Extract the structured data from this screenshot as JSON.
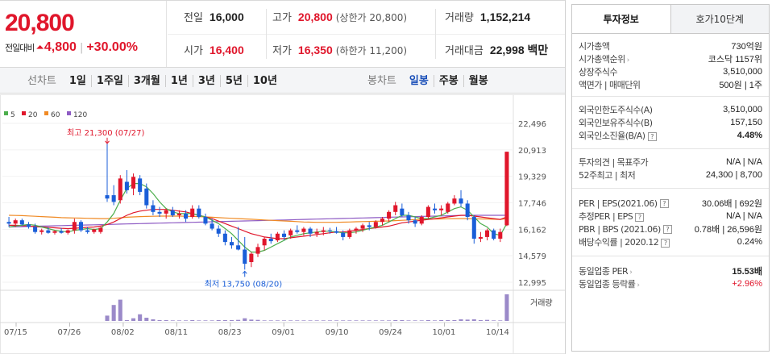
{
  "quote": {
    "price": "20,800",
    "change_label": "전일대비",
    "change_value": "4,800",
    "change_rate": "+30.00%",
    "prev_label": "전일",
    "prev_value": "16,000",
    "high_label": "고가",
    "high_value": "20,800",
    "upper_limit": "(상한가 20,800)",
    "volume_label": "거래량",
    "volume_value": "1,152,214",
    "open_label": "시가",
    "open_value": "16,400",
    "low_label": "저가",
    "low_value": "16,350",
    "lower_limit": "(하한가 11,200)",
    "amount_label": "거래대금",
    "amount_value": "22,998 백만"
  },
  "toolbar": {
    "line_title": "선차트",
    "ranges": [
      "1일",
      "1주일",
      "3개월",
      "1년",
      "3년",
      "5년",
      "10년"
    ],
    "candle_title": "봉차트",
    "candles": [
      "일봉",
      "주봉",
      "월봉"
    ],
    "active_candle": "일봉"
  },
  "chart_data": {
    "type": "candlestick",
    "legend": [
      {
        "label": "5",
        "color": "#4cae4c"
      },
      {
        "label": "20",
        "color": "#e0162b"
      },
      {
        "label": "60",
        "color": "#f08a24"
      },
      {
        "label": "120",
        "color": "#8e5bc4"
      }
    ],
    "y_ticks": [
      "22,496",
      "20,913",
      "19,329",
      "17,746",
      "16,162",
      "14,579",
      "12,995"
    ],
    "y_range": [
      12995,
      22496
    ],
    "x_ticks": [
      "07/15",
      "07/26",
      "08/02",
      "08/11",
      "08/23",
      "09/01",
      "09/10",
      "09/24",
      "10/01",
      "10/14"
    ],
    "high_annotation": "최고 21,300 (07/27)",
    "low_annotation": "최저 13,750 (08/20)",
    "volume_label": "거래량",
    "up_color": "#e0162b",
    "down_color": "#1a5ed8",
    "candles": [
      {
        "o": 16600,
        "h": 16900,
        "l": 16300,
        "c": 16500
      },
      {
        "o": 16500,
        "h": 16800,
        "l": 16300,
        "c": 16700
      },
      {
        "o": 16700,
        "h": 16800,
        "l": 16400,
        "c": 16450
      },
      {
        "o": 16450,
        "h": 16600,
        "l": 16200,
        "c": 16300
      },
      {
        "o": 16300,
        "h": 16500,
        "l": 15900,
        "c": 16000
      },
      {
        "o": 16000,
        "h": 16200,
        "l": 15850,
        "c": 16100
      },
      {
        "o": 16100,
        "h": 16300,
        "l": 15900,
        "c": 15950
      },
      {
        "o": 15950,
        "h": 16100,
        "l": 15850,
        "c": 16050
      },
      {
        "o": 16050,
        "h": 16250,
        "l": 15900,
        "c": 15950
      },
      {
        "o": 15950,
        "h": 16150,
        "l": 15850,
        "c": 16100
      },
      {
        "o": 16100,
        "h": 16800,
        "l": 15900,
        "c": 16600
      },
      {
        "o": 16600,
        "h": 16700,
        "l": 16000,
        "c": 16100
      },
      {
        "o": 16100,
        "h": 16300,
        "l": 15900,
        "c": 16000
      },
      {
        "o": 16000,
        "h": 16200,
        "l": 15900,
        "c": 16150
      },
      {
        "o": 16000,
        "h": 16300,
        "l": 15900,
        "c": 16250
      },
      {
        "o": 18200,
        "h": 21300,
        "l": 17800,
        "c": 18000
      },
      {
        "o": 18200,
        "h": 18800,
        "l": 17600,
        "c": 17800
      },
      {
        "o": 17900,
        "h": 19400,
        "l": 17700,
        "c": 19200
      },
      {
        "o": 19000,
        "h": 19700,
        "l": 18300,
        "c": 18500
      },
      {
        "o": 18600,
        "h": 19500,
        "l": 18200,
        "c": 19300
      },
      {
        "o": 19200,
        "h": 19400,
        "l": 18200,
        "c": 18400
      },
      {
        "o": 18600,
        "h": 18900,
        "l": 17400,
        "c": 17600
      },
      {
        "o": 17600,
        "h": 17900,
        "l": 17000,
        "c": 17200
      },
      {
        "o": 17200,
        "h": 17500,
        "l": 16900,
        "c": 17100
      },
      {
        "o": 17100,
        "h": 17400,
        "l": 16800,
        "c": 17300
      },
      {
        "o": 17300,
        "h": 17500,
        "l": 16900,
        "c": 17000
      },
      {
        "o": 17000,
        "h": 17300,
        "l": 16800,
        "c": 17100
      },
      {
        "o": 17100,
        "h": 17300,
        "l": 16600,
        "c": 16800
      },
      {
        "o": 16900,
        "h": 17600,
        "l": 16800,
        "c": 17400
      },
      {
        "o": 17400,
        "h": 17600,
        "l": 16800,
        "c": 16900
      },
      {
        "o": 16900,
        "h": 17100,
        "l": 16400,
        "c": 16500
      },
      {
        "o": 16500,
        "h": 16800,
        "l": 16100,
        "c": 16200
      },
      {
        "o": 16200,
        "h": 16400,
        "l": 15700,
        "c": 15900
      },
      {
        "o": 15900,
        "h": 16100,
        "l": 15200,
        "c": 15400
      },
      {
        "o": 15400,
        "h": 15700,
        "l": 15000,
        "c": 15200
      },
      {
        "o": 15200,
        "h": 16300,
        "l": 14900,
        "c": 14950
      },
      {
        "o": 14950,
        "h": 15700,
        "l": 13750,
        "c": 14100
      },
      {
        "o": 14200,
        "h": 14800,
        "l": 13900,
        "c": 14700
      },
      {
        "o": 14700,
        "h": 15300,
        "l": 14500,
        "c": 15100
      },
      {
        "o": 15200,
        "h": 15700,
        "l": 14900,
        "c": 15600
      },
      {
        "o": 15600,
        "h": 15900,
        "l": 15300,
        "c": 15450
      },
      {
        "o": 15500,
        "h": 16000,
        "l": 15400,
        "c": 15900
      },
      {
        "o": 15900,
        "h": 16100,
        "l": 15500,
        "c": 15700
      },
      {
        "o": 15800,
        "h": 16200,
        "l": 15600,
        "c": 16100
      },
      {
        "o": 16100,
        "h": 16400,
        "l": 15900,
        "c": 16000
      },
      {
        "o": 16000,
        "h": 16300,
        "l": 15800,
        "c": 16200
      },
      {
        "o": 16200,
        "h": 16300,
        "l": 15700,
        "c": 15900
      },
      {
        "o": 15900,
        "h": 16200,
        "l": 15700,
        "c": 16000
      },
      {
        "o": 16000,
        "h": 16300,
        "l": 15800,
        "c": 16100
      },
      {
        "o": 16100,
        "h": 16250,
        "l": 15900,
        "c": 16050
      },
      {
        "o": 16050,
        "h": 16300,
        "l": 15900,
        "c": 15950
      },
      {
        "o": 15950,
        "h": 16100,
        "l": 15500,
        "c": 15700
      },
      {
        "o": 15700,
        "h": 16200,
        "l": 15600,
        "c": 16100
      },
      {
        "o": 16100,
        "h": 16300,
        "l": 15900,
        "c": 16200
      },
      {
        "o": 16200,
        "h": 16500,
        "l": 16000,
        "c": 16400
      },
      {
        "o": 16400,
        "h": 16600,
        "l": 16100,
        "c": 16300
      },
      {
        "o": 16300,
        "h": 16700,
        "l": 16200,
        "c": 16600
      },
      {
        "o": 16600,
        "h": 16900,
        "l": 16400,
        "c": 16800
      },
      {
        "o": 16800,
        "h": 17300,
        "l": 16600,
        "c": 17200
      },
      {
        "o": 17200,
        "h": 17800,
        "l": 17000,
        "c": 17600
      },
      {
        "o": 17400,
        "h": 17700,
        "l": 16900,
        "c": 17000
      },
      {
        "o": 17000,
        "h": 17200,
        "l": 16500,
        "c": 16700
      },
      {
        "o": 16700,
        "h": 16900,
        "l": 16300,
        "c": 16500
      },
      {
        "o": 16500,
        "h": 17000,
        "l": 16400,
        "c": 16900
      },
      {
        "o": 16900,
        "h": 17600,
        "l": 16800,
        "c": 17500
      },
      {
        "o": 17400,
        "h": 17700,
        "l": 17100,
        "c": 17300
      },
      {
        "o": 17300,
        "h": 17600,
        "l": 17000,
        "c": 17400
      },
      {
        "o": 17200,
        "h": 17800,
        "l": 17100,
        "c": 17700
      },
      {
        "o": 17700,
        "h": 18200,
        "l": 17600,
        "c": 18000
      },
      {
        "o": 18000,
        "h": 18500,
        "l": 17500,
        "c": 17700
      },
      {
        "o": 17700,
        "h": 17900,
        "l": 16700,
        "c": 16900
      },
      {
        "o": 16900,
        "h": 17000,
        "l": 15300,
        "c": 15600
      },
      {
        "o": 15600,
        "h": 16000,
        "l": 15400,
        "c": 15700
      },
      {
        "o": 15700,
        "h": 16200,
        "l": 15500,
        "c": 16100
      },
      {
        "o": 16100,
        "h": 16200,
        "l": 15500,
        "c": 15600
      },
      {
        "o": 15600,
        "h": 16200,
        "l": 15400,
        "c": 16000
      },
      {
        "o": 16400,
        "h": 20800,
        "l": 16350,
        "c": 20800
      }
    ],
    "volumes": [
      0,
      0,
      0,
      0,
      0,
      0,
      0,
      0,
      0,
      0,
      0,
      0,
      0,
      0,
      0,
      20,
      60,
      80,
      3,
      10,
      25,
      12,
      6,
      3,
      3,
      2,
      2,
      2,
      3,
      2,
      2,
      2,
      3,
      3,
      3,
      4,
      10,
      5,
      4,
      2,
      2,
      2,
      2,
      2,
      2,
      2,
      2,
      2,
      2,
      2,
      2,
      2,
      2,
      2,
      2,
      2,
      2,
      2,
      2,
      3,
      3,
      2,
      2,
      2,
      3,
      2,
      3,
      3,
      3,
      6,
      5,
      6,
      3,
      4,
      2,
      2,
      100
    ],
    "ma5": [
      16300,
      16350,
      16400,
      16450,
      16400,
      16300,
      16200,
      16100,
      16050,
      16000,
      16100,
      16150,
      16200,
      16150,
      16200,
      16600,
      17100,
      17900,
      18600,
      18900,
      18900,
      18700,
      18300,
      17800,
      17400,
      17200,
      17100,
      17100,
      17100,
      17000,
      16900,
      16700,
      16500,
      16200,
      15900,
      15500,
      15100,
      14800,
      14800,
      14900,
      15100,
      15300,
      15500,
      15700,
      15800,
      15900,
      15950,
      16000,
      16050,
      16050,
      16000,
      15950,
      15950,
      16000,
      16100,
      16200,
      16300,
      16400,
      16600,
      16800,
      17000,
      17000,
      16900,
      16800,
      16800,
      16900,
      17000,
      17200,
      17400,
      17500,
      17300,
      16900,
      16500,
      16300,
      15900,
      15800,
      16500
    ],
    "ma20": [
      16400,
      16400,
      16380,
      16350,
      16320,
      16300,
      16280,
      16250,
      16220,
      16200,
      16220,
      16250,
      16280,
      16300,
      16350,
      16450,
      16600,
      16800,
      17000,
      17150,
      17250,
      17300,
      17350,
      17350,
      17350,
      17300,
      17250,
      17200,
      17100,
      17000,
      16900,
      16800,
      16650,
      16500,
      16350,
      16200,
      16050,
      15900,
      15800,
      15700,
      15650,
      15600,
      15600,
      15650,
      15700,
      15750,
      15800,
      15850,
      15900,
      15950,
      16000,
      16000,
      16050,
      16100,
      16150,
      16200,
      16250,
      16300,
      16350,
      16450,
      16550,
      16600,
      16650,
      16700,
      16750,
      16800,
      16850,
      16900,
      16950,
      17000,
      17000,
      16950,
      16900,
      16850,
      16800,
      16750,
      16900
    ],
    "ma60": [
      17000,
      16990,
      16980,
      16960,
      16940,
      16920,
      16900,
      16880,
      16860,
      16850,
      16840,
      16830,
      16820,
      16810,
      16800,
      16800,
      16820,
      16850,
      16880,
      16900,
      16920,
      16930,
      16940,
      16950,
      16950,
      16950,
      16950,
      16940,
      16930,
      16920,
      16900,
      16880,
      16860,
      16840,
      16820,
      16800,
      16780,
      16760,
      16740,
      16720,
      16700,
      16680,
      16660,
      16640,
      16620,
      16600,
      16590,
      16580,
      16580,
      16580,
      16580,
      16590,
      16600,
      16610,
      16620,
      16630,
      16640,
      16650,
      16660,
      16680,
      16700,
      16720,
      16740,
      16750,
      16760,
      16770,
      16780,
      16790,
      16800,
      16800,
      16800,
      16790,
      16780,
      16770,
      16760,
      16750,
      16800
    ],
    "ma120": [
      16300,
      16310,
      16320,
      16330,
      16340,
      16350,
      16360,
      16370,
      16380,
      16390,
      16400,
      16410,
      16420,
      16430,
      16440,
      16450,
      16460,
      16470,
      16480,
      16490,
      16500,
      16510,
      16520,
      16530,
      16540,
      16550,
      16560,
      16570,
      16580,
      16590,
      16600,
      16610,
      16620,
      16630,
      16640,
      16650,
      16660,
      16670,
      16680,
      16690,
      16700,
      16710,
      16720,
      16730,
      16740,
      16750,
      16760,
      16770,
      16780,
      16790,
      16800,
      16810,
      16820,
      16830,
      16840,
      16850,
      16860,
      16870,
      16880,
      16890,
      16900,
      16910,
      16920,
      16930,
      16940,
      16950,
      16960,
      16970,
      16980,
      16990,
      17000,
      17000,
      17000,
      17000,
      17000,
      17000,
      17000
    ]
  },
  "panel": {
    "tabs": [
      "투자정보",
      "호가10단계"
    ],
    "s1": [
      {
        "label": "시가총액",
        "value": "730억원"
      },
      {
        "label": "시가총액순위",
        "value": "코스닥 1157위"
      },
      {
        "label": "상장주식수",
        "value": "3,510,000"
      },
      {
        "label": "액면가 | 매매단위",
        "value": "500원 | 1주"
      }
    ],
    "s2": [
      {
        "label": "외국인한도주식수(A)",
        "value": "3,510,000"
      },
      {
        "label": "외국인보유주식수(B)",
        "value": "157,150"
      },
      {
        "label": "외국인소진율(B/A)",
        "value": "4.48%"
      }
    ],
    "s3": [
      {
        "label": "투자의견 | 목표주가",
        "value": "N/A | N/A"
      },
      {
        "label": "52주최고 | 최저",
        "value": "24,300 | 8,700"
      }
    ],
    "s4": [
      {
        "label": "PER | EPS(2021.06)",
        "value": "30.06배 | 692원"
      },
      {
        "label": "추정PER | EPS",
        "value": "N/A | N/A"
      },
      {
        "label": "PBR | BPS (2021.06)",
        "value": "0.78배 | 26,596원"
      },
      {
        "label": "배당수익률 | 2020.12",
        "value": "0.24%"
      }
    ],
    "s5": [
      {
        "label": "동일업종 PER",
        "value": "15.53배"
      },
      {
        "label": "동일업종 등락률",
        "value": "+2.96%"
      }
    ]
  }
}
